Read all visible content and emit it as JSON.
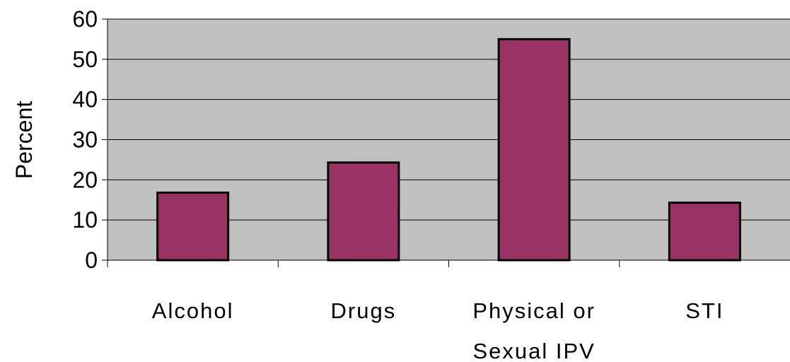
{
  "chart_data": {
    "type": "bar",
    "categories": [
      [
        "Alcohol"
      ],
      [
        "Drugs"
      ],
      [
        "Physical or",
        "Sexual IPV"
      ],
      [
        "STI"
      ]
    ],
    "values": [
      16.8,
      24.3,
      55,
      14.3
    ],
    "xlabel": "",
    "ylabel": "Percent",
    "ylim": [
      0,
      60
    ],
    "yticks": [
      "0",
      "10",
      "20",
      "30",
      "40",
      "50",
      "60"
    ],
    "grid": true,
    "legend": "none",
    "colors": {
      "bar": "#993366",
      "plot_background": "#c0c0c0",
      "gridline": "#000000",
      "bar_outline": "#000000"
    }
  }
}
